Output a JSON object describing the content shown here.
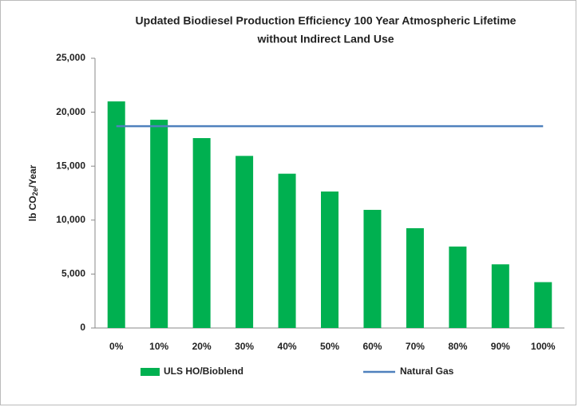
{
  "chart_data": {
    "type": "bar",
    "title": [
      "Updated Biodiesel Production Efficiency 100 Year Atmospheric Lifetime",
      "without Indirect Land Use"
    ],
    "y_label": [
      "lb CO",
      "2e",
      "/Year"
    ],
    "categories": [
      "0%",
      "10%",
      "20%",
      "30%",
      "40%",
      "50%",
      "60%",
      "70%",
      "80%",
      "90%",
      "100%"
    ],
    "series": [
      {
        "name": "ULS HO/Bioblend",
        "type": "bar",
        "color": "#00b050",
        "values": [
          21000,
          19300,
          17600,
          15950,
          14300,
          12650,
          10950,
          9250,
          7550,
          5900,
          4250
        ]
      },
      {
        "name": "Natural Gas",
        "type": "line",
        "color": "#4f81bd",
        "values": [
          18700,
          18700,
          18700,
          18700,
          18700,
          18700,
          18700,
          18700,
          18700,
          18700,
          18700
        ]
      }
    ],
    "ylim": [
      0,
      25000
    ],
    "yticks": [
      0,
      {
        "value": 5000,
        "label": "5,000"
      },
      {
        "value": 10000,
        "label": "10,000"
      },
      {
        "value": 15000,
        "label": "15,000"
      },
      {
        "value": 20000,
        "label": "20,000"
      },
      {
        "value": 25000,
        "label": "25,000"
      }
    ],
    "grid": false,
    "legend": "bottom"
  }
}
